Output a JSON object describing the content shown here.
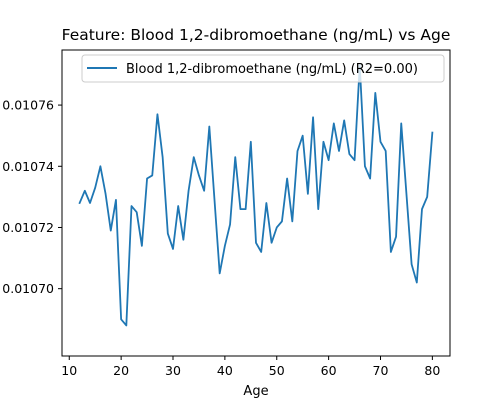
{
  "chart_data": {
    "type": "line",
    "title": "Feature: Blood 1,2-dibromoethane (ng/mL) vs Age",
    "xlabel": "Age",
    "ylabel": "",
    "xlim": [
      8.6,
      83.4
    ],
    "ylim": [
      0.010678,
      0.010778
    ],
    "x_ticks": [
      10,
      20,
      30,
      40,
      50,
      60,
      70,
      80
    ],
    "x_tick_labels": [
      "10",
      "20",
      "30",
      "40",
      "50",
      "60",
      "70",
      "80"
    ],
    "y_ticks": [
      0.0107,
      0.01072,
      0.01074,
      0.01076
    ],
    "y_tick_labels": [
      "0.01070",
      "0.01072",
      "0.01074",
      "0.01076"
    ],
    "grid": false,
    "legend_position": "top-right",
    "series": [
      {
        "name": "Blood 1,2-dibromoethane (ng/mL) (R2=0.00)",
        "color": "#1f77b4",
        "x": [
          12,
          13,
          14,
          15,
          16,
          17,
          18,
          19,
          20,
          21,
          22,
          23,
          24,
          25,
          26,
          27,
          28,
          29,
          30,
          31,
          32,
          33,
          34,
          35,
          36,
          37,
          38,
          39,
          40,
          41,
          42,
          43,
          44,
          45,
          46,
          47,
          48,
          49,
          50,
          51,
          52,
          53,
          54,
          55,
          56,
          57,
          58,
          59,
          60,
          61,
          62,
          63,
          64,
          65,
          66,
          67,
          68,
          69,
          70,
          71,
          72,
          73,
          74,
          75,
          76,
          77,
          78,
          79,
          80
        ],
        "y": [
          0.010728,
          0.010732,
          0.010728,
          0.010733,
          0.01074,
          0.010731,
          0.010719,
          0.010729,
          0.01069,
          0.010688,
          0.010727,
          0.010725,
          0.010714,
          0.010736,
          0.010737,
          0.010757,
          0.010743,
          0.010718,
          0.010713,
          0.010727,
          0.010716,
          0.010732,
          0.010743,
          0.010737,
          0.010732,
          0.010753,
          0.010729,
          0.010705,
          0.010714,
          0.010721,
          0.010743,
          0.010726,
          0.010726,
          0.010748,
          0.010715,
          0.010712,
          0.010728,
          0.010715,
          0.01072,
          0.010722,
          0.010736,
          0.010722,
          0.010745,
          0.01075,
          0.010731,
          0.010756,
          0.010726,
          0.010748,
          0.010742,
          0.010754,
          0.010745,
          0.010755,
          0.010744,
          0.010742,
          0.010773,
          0.01074,
          0.010736,
          0.010764,
          0.010748,
          0.010745,
          0.010712,
          0.010717,
          0.010754,
          0.010731,
          0.010708,
          0.010702,
          0.010726,
          0.01073,
          0.010751
        ]
      }
    ]
  }
}
